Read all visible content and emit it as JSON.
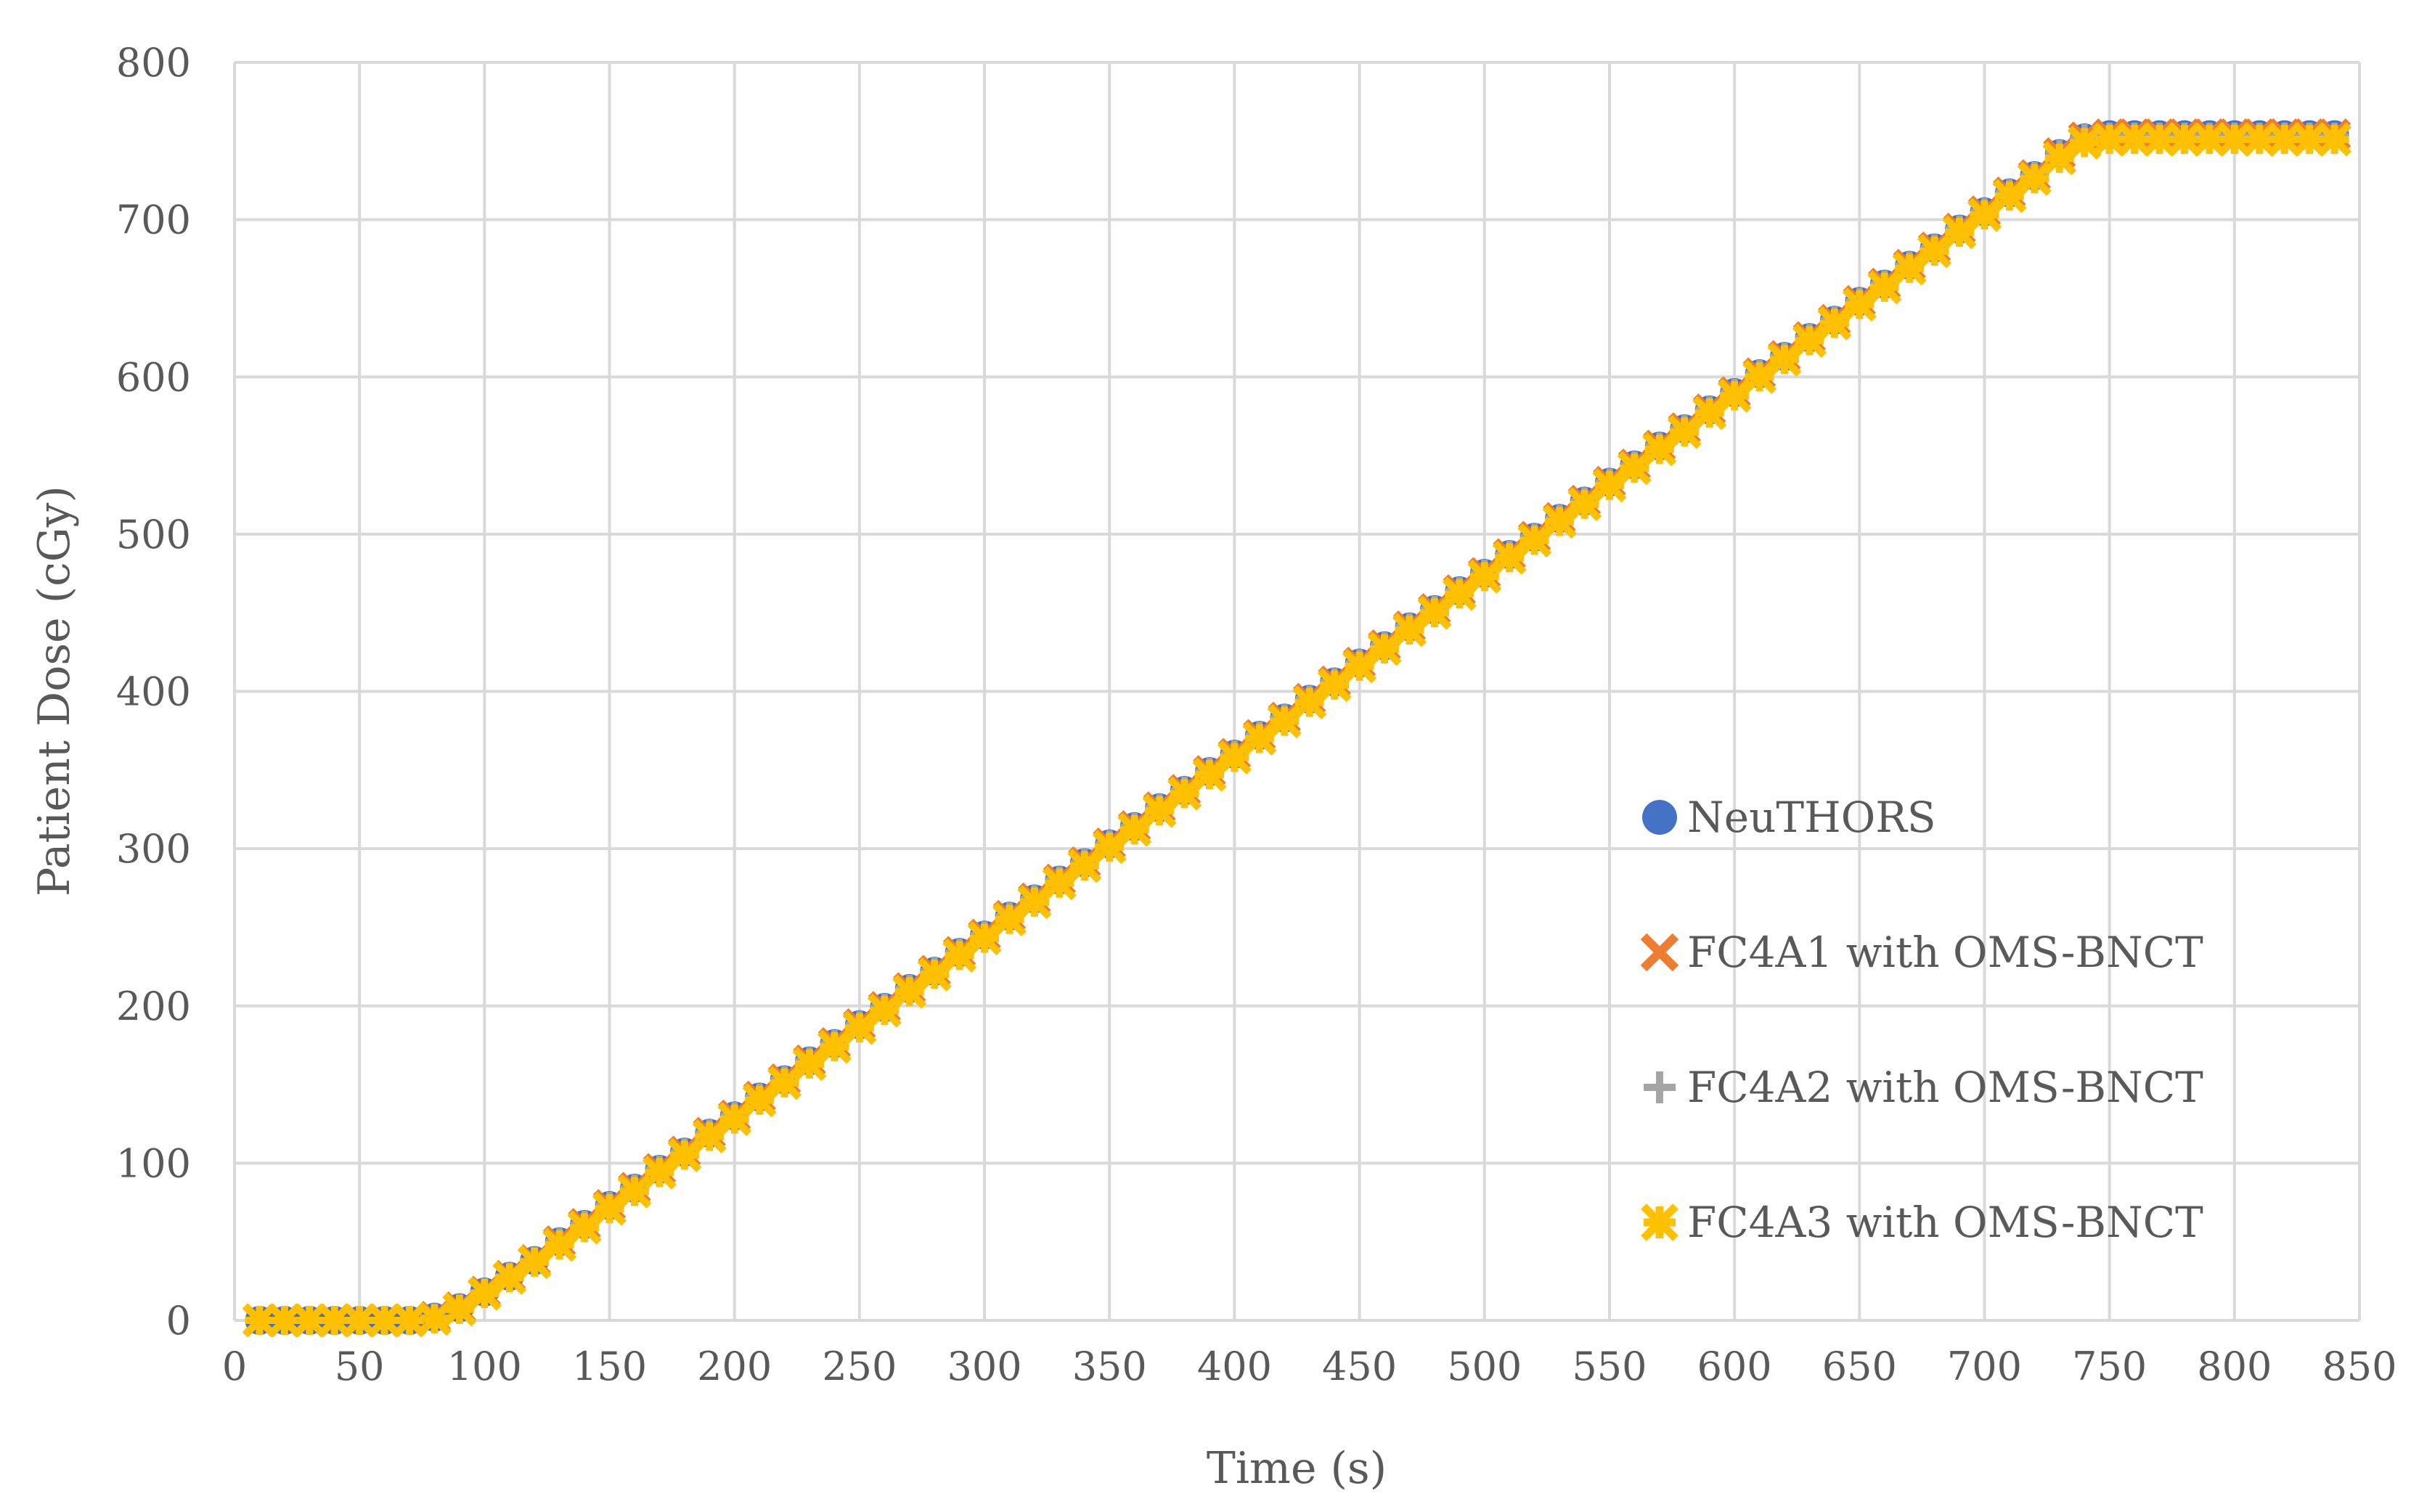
{
  "chart_data": {
    "type": "scatter",
    "xlabel": "Time (s)",
    "ylabel": "Patient Dose (cGy)",
    "xlim": [
      0,
      850
    ],
    "ylim": [
      0,
      800
    ],
    "xticks": [
      "0",
      "50",
      "100",
      "150",
      "200",
      "250",
      "300",
      "350",
      "400",
      "450",
      "500",
      "550",
      "600",
      "650",
      "700",
      "750",
      "800",
      "850"
    ],
    "yticks": [
      "0",
      "100",
      "200",
      "300",
      "400",
      "500",
      "600",
      "700",
      "800"
    ],
    "grid": true,
    "legend_position": "right",
    "x": [
      10,
      20,
      30,
      40,
      50,
      60,
      70,
      80,
      90,
      100,
      110,
      120,
      130,
      140,
      150,
      160,
      170,
      180,
      190,
      200,
      210,
      220,
      230,
      240,
      250,
      260,
      270,
      280,
      290,
      300,
      310,
      320,
      330,
      340,
      350,
      360,
      370,
      380,
      390,
      400,
      410,
      420,
      430,
      440,
      450,
      460,
      470,
      480,
      490,
      500,
      510,
      520,
      530,
      540,
      550,
      560,
      570,
      580,
      590,
      600,
      610,
      620,
      630,
      640,
      650,
      660,
      670,
      680,
      690,
      700,
      710,
      720,
      730,
      740,
      750,
      760,
      770,
      780,
      790,
      800,
      810,
      820,
      830,
      840
    ],
    "series": [
      {
        "name": "NeuTHORS",
        "marker": "circle",
        "color": "#4472c4",
        "values": [
          0,
          0,
          0,
          0,
          0,
          0,
          0,
          2,
          8,
          18,
          28,
          38,
          50,
          61,
          73,
          84,
          96,
          107,
          119,
          130,
          142,
          153,
          165,
          176,
          188,
          199,
          211,
          222,
          234,
          245,
          257,
          268,
          280,
          291,
          303,
          314,
          326,
          337,
          349,
          360,
          372,
          383,
          395,
          406,
          418,
          429,
          441,
          452,
          464,
          475,
          487,
          498,
          510,
          521,
          533,
          544,
          556,
          567,
          579,
          590,
          602,
          613,
          625,
          636,
          648,
          659,
          671,
          682,
          694,
          705,
          717,
          728,
          742,
          752,
          754,
          754,
          754,
          754,
          754,
          754,
          754,
          754,
          754,
          754
        ]
      },
      {
        "name": "FC4A1 with OMS-BNCT",
        "marker": "x",
        "color": "#ed7d31",
        "values": [
          0,
          0,
          0,
          0,
          0,
          0,
          0,
          2,
          8,
          18,
          28,
          38,
          50,
          61,
          73,
          84,
          96,
          107,
          119,
          130,
          142,
          153,
          165,
          176,
          188,
          199,
          211,
          222,
          234,
          245,
          257,
          268,
          280,
          291,
          303,
          314,
          326,
          337,
          349,
          360,
          372,
          383,
          395,
          406,
          418,
          429,
          441,
          452,
          464,
          475,
          487,
          498,
          510,
          521,
          533,
          544,
          556,
          567,
          579,
          590,
          602,
          613,
          625,
          636,
          648,
          659,
          671,
          682,
          694,
          705,
          717,
          728,
          742,
          752,
          754,
          754,
          754,
          754,
          754,
          754,
          754,
          754,
          754,
          754
        ]
      },
      {
        "name": "FC4A2 with OMS-BNCT",
        "marker": "plus",
        "color": "#a5a5a5",
        "values": [
          0,
          0,
          0,
          0,
          0,
          0,
          0,
          2,
          8,
          18,
          28,
          38,
          50,
          61,
          73,
          84,
          96,
          107,
          119,
          130,
          142,
          153,
          165,
          176,
          188,
          199,
          211,
          222,
          234,
          245,
          257,
          268,
          280,
          291,
          303,
          314,
          326,
          337,
          349,
          360,
          372,
          383,
          395,
          406,
          418,
          429,
          441,
          452,
          464,
          475,
          487,
          498,
          510,
          521,
          533,
          544,
          556,
          567,
          579,
          590,
          602,
          613,
          625,
          636,
          648,
          659,
          671,
          682,
          694,
          705,
          717,
          728,
          742,
          752,
          753,
          753,
          753,
          753,
          753,
          753,
          753,
          753,
          753,
          753
        ]
      },
      {
        "name": "FC4A3 with OMS-BNCT",
        "marker": "star",
        "color": "#ffc000",
        "values": [
          0,
          0,
          0,
          0,
          0,
          0,
          0,
          1,
          7,
          17,
          27,
          37,
          48,
          59,
          71,
          82,
          94,
          105,
          117,
          128,
          140,
          151,
          163,
          174,
          186,
          197,
          209,
          220,
          232,
          243,
          255,
          266,
          278,
          289,
          301,
          312,
          324,
          335,
          347,
          358,
          370,
          381,
          393,
          404,
          416,
          427,
          439,
          450,
          462,
          473,
          485,
          496,
          508,
          519,
          531,
          542,
          554,
          565,
          577,
          588,
          600,
          611,
          623,
          634,
          646,
          657,
          669,
          680,
          692,
          703,
          715,
          726,
          739,
          749,
          751,
          751,
          751,
          751,
          751,
          751,
          751,
          751,
          751,
          751
        ]
      }
    ]
  }
}
